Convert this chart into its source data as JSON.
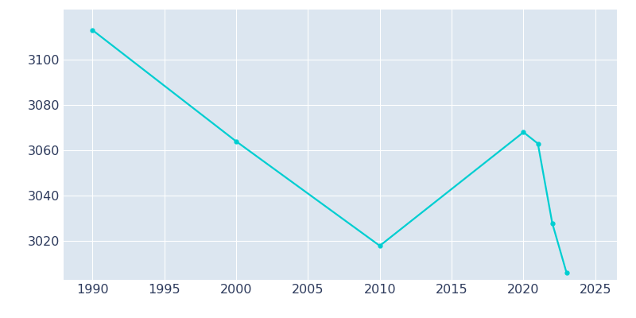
{
  "years": [
    1990,
    2000,
    2010,
    2020,
    2021,
    2022,
    2023
  ],
  "population": [
    3113,
    3064,
    3018,
    3068,
    3063,
    3028,
    3006
  ],
  "line_color": "#00CED1",
  "marker": "o",
  "marker_size": 3.5,
  "bg_color": "#ffffff",
  "plot_bg_color": "#dce6f0",
  "grid_color": "#ffffff",
  "xlim": [
    1988,
    2026.5
  ],
  "ylim": [
    3003,
    3122
  ],
  "xticks": [
    1990,
    1995,
    2000,
    2005,
    2010,
    2015,
    2020,
    2025
  ],
  "yticks": [
    3020,
    3040,
    3060,
    3080,
    3100
  ],
  "tick_label_color": "#2d3a5c",
  "tick_fontsize": 11.5,
  "linewidth": 1.6
}
